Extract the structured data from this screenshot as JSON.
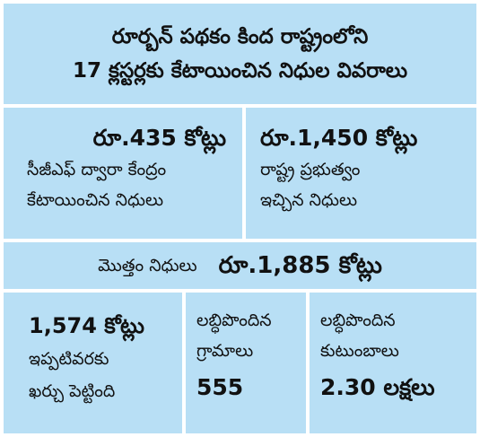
{
  "title": {
    "line1": "రూర్బన్ పథకం కింద రాష్ట్రంలోని",
    "line2": "17 క్లస్టర్లకు కేటాయించిన నిధుల వివరాలు"
  },
  "cpf_funds": {
    "amount": "రూ.435 కోట్లు",
    "desc_line1": "సీజీఎఫ్ ద్వారా కేంద్రం",
    "desc_line2": "కేటాయించిన నిధులు"
  },
  "state_funds": {
    "amount": "రూ.1,450 కోట్లు",
    "desc_line1": "రాష్ట్ర ప్రభుత్వం",
    "desc_line2": "ఇచ్చిన నిధులు"
  },
  "total_funds": {
    "label": "మొత్తం నిధులు",
    "amount": "రూ.1,885 కోట్లు"
  },
  "spent": {
    "amount": "1,574 కోట్లు",
    "desc_line1": "ఇప్పటివరకు",
    "desc_line2": "ఖర్చు పెట్టింది"
  },
  "villages": {
    "label_line1": "లబ్ధిపొందిన",
    "label_line2": "గ్రామాలు",
    "value": "555"
  },
  "families": {
    "label_line1": "లబ్ధిపొందిన",
    "label_line2": "కుటుంబాలు",
    "value": "2.30 లక్షలు"
  }
}
